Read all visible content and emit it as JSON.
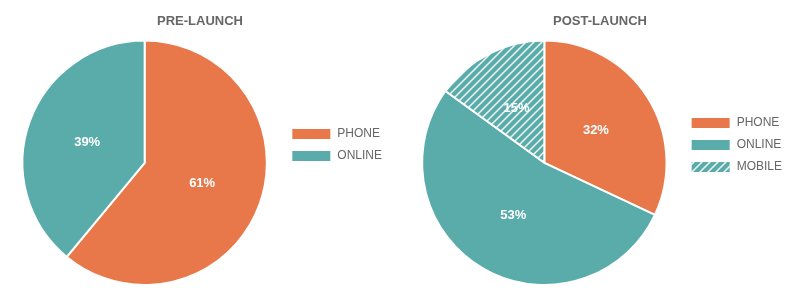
{
  "chart_data": [
    {
      "type": "pie",
      "title": "PRE-LAUNCH",
      "categories": [
        "PHONE",
        "ONLINE"
      ],
      "values": [
        61,
        39
      ],
      "value_labels": [
        "61%",
        "39%"
      ],
      "colors": [
        "#E8784A",
        "#5AACAB"
      ],
      "data_labels": true,
      "legend": "right"
    },
    {
      "type": "pie",
      "title": "POST-LAUNCH",
      "categories": [
        "PHONE",
        "ONLINE",
        "MOBILE"
      ],
      "values": [
        32,
        53,
        15
      ],
      "value_labels": [
        "32%",
        "53%",
        "15%"
      ],
      "colors": [
        "#E8784A",
        "#5AACAB",
        "#5AACAB"
      ],
      "data_labels": true,
      "legend": "right"
    }
  ]
}
